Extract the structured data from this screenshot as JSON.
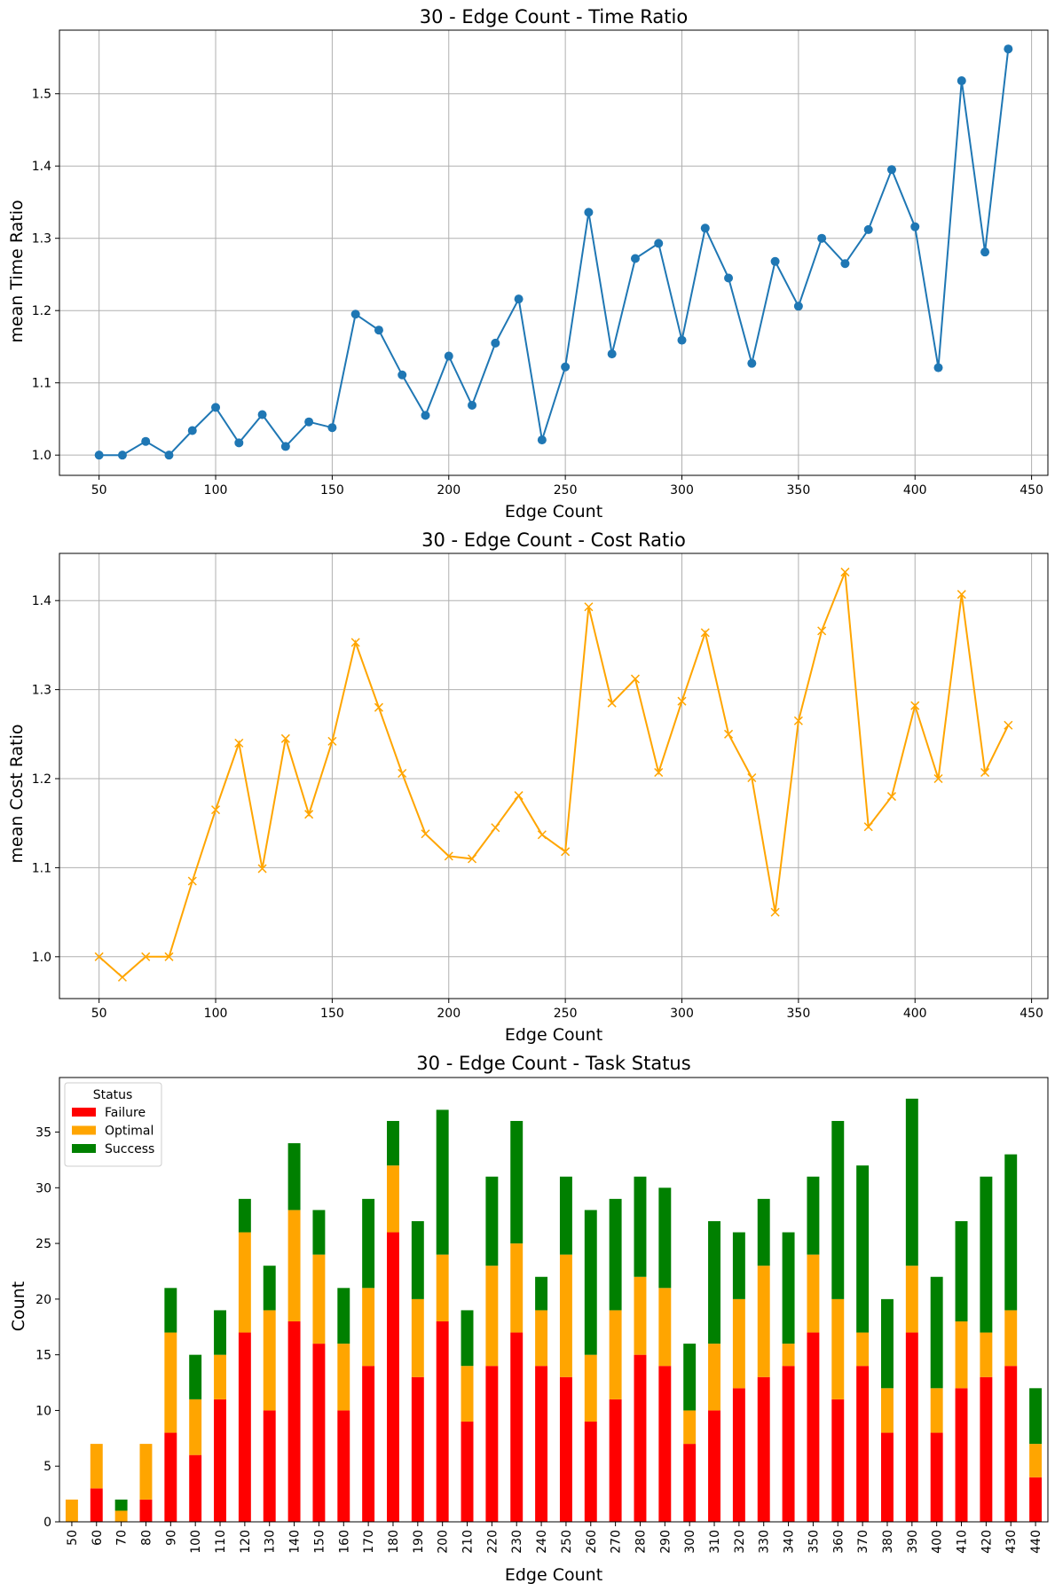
{
  "chart_data": [
    {
      "type": "line",
      "title": "30 - Edge Count - Time Ratio",
      "xlabel": "Edge Count",
      "ylabel": "mean Time Ratio",
      "xlim": [
        33,
        457
      ],
      "ylim": [
        0.972,
        1.588
      ],
      "xticks": [
        50,
        100,
        150,
        200,
        250,
        300,
        350,
        400,
        450
      ],
      "yticks": [
        1.0,
        1.1,
        1.2,
        1.3,
        1.4,
        1.5
      ],
      "grid": true,
      "color": "#1f77b4",
      "marker": "circle",
      "x": [
        50,
        60,
        70,
        80,
        90,
        100,
        110,
        120,
        130,
        140,
        150,
        160,
        170,
        180,
        190,
        200,
        210,
        220,
        230,
        240,
        250,
        260,
        270,
        280,
        290,
        300,
        310,
        320,
        330,
        340,
        350,
        360,
        370,
        380,
        390,
        400,
        410,
        420,
        430,
        440
      ],
      "y": [
        1.0,
        1.0,
        1.019,
        1.0,
        1.034,
        1.066,
        1.017,
        1.056,
        1.012,
        1.046,
        1.038,
        1.195,
        1.173,
        1.111,
        1.055,
        1.137,
        1.069,
        1.155,
        1.216,
        1.021,
        1.122,
        1.336,
        1.14,
        1.272,
        1.293,
        1.159,
        1.314,
        1.245,
        1.127,
        1.268,
        1.206,
        1.3,
        1.265,
        1.312,
        1.395,
        1.316,
        1.121,
        1.518,
        1.281,
        1.562
      ]
    },
    {
      "type": "line",
      "title": "30 - Edge Count - Cost Ratio",
      "xlabel": "Edge Count",
      "ylabel": "mean Cost Ratio",
      "xlim": [
        33,
        457
      ],
      "ylim": [
        0.953,
        1.453
      ],
      "xticks": [
        50,
        100,
        150,
        200,
        250,
        300,
        350,
        400,
        450
      ],
      "yticks": [
        1.0,
        1.1,
        1.2,
        1.3,
        1.4
      ],
      "grid": true,
      "color": "#ffa500",
      "marker": "x",
      "x": [
        50,
        60,
        70,
        80,
        90,
        100,
        110,
        120,
        130,
        140,
        150,
        160,
        170,
        180,
        190,
        200,
        210,
        220,
        230,
        240,
        250,
        260,
        270,
        280,
        290,
        300,
        310,
        320,
        330,
        340,
        350,
        360,
        370,
        380,
        390,
        400,
        410,
        420,
        430,
        440
      ],
      "y": [
        1.0,
        0.977,
        1.0,
        1.0,
        1.085,
        1.165,
        1.24,
        1.099,
        1.245,
        1.16,
        1.242,
        1.353,
        1.28,
        1.206,
        1.138,
        1.113,
        1.11,
        1.145,
        1.181,
        1.137,
        1.118,
        1.393,
        1.285,
        1.312,
        1.207,
        1.287,
        1.364,
        1.25,
        1.201,
        1.05,
        1.265,
        1.366,
        1.432,
        1.146,
        1.18,
        1.282,
        1.2,
        1.407,
        1.207,
        1.26
      ]
    },
    {
      "type": "bar",
      "stacked": true,
      "title": "30 - Edge Count - Task Status",
      "xlabel": "Edge Count",
      "ylabel": "Count",
      "ylim": [
        0,
        39.9
      ],
      "yticks": [
        0,
        5,
        10,
        15,
        20,
        25,
        30,
        35
      ],
      "grid": false,
      "legend": {
        "title": "Status",
        "placement": "upper-left"
      },
      "categories": [
        "50",
        "60",
        "70",
        "80",
        "90",
        "100",
        "110",
        "120",
        "130",
        "140",
        "150",
        "160",
        "170",
        "180",
        "190",
        "200",
        "210",
        "220",
        "230",
        "240",
        "250",
        "260",
        "270",
        "280",
        "290",
        "300",
        "310",
        "320",
        "330",
        "340",
        "350",
        "360",
        "370",
        "380",
        "390",
        "400",
        "410",
        "420",
        "430",
        "440"
      ],
      "series": [
        {
          "name": "Failure",
          "color": "#ff0000",
          "values": [
            0,
            3,
            0,
            2,
            8,
            6,
            11,
            17,
            10,
            18,
            16,
            10,
            14,
            26,
            13,
            18,
            9,
            14,
            17,
            14,
            13,
            9,
            11,
            15,
            14,
            7,
            10,
            12,
            13,
            14,
            17,
            11,
            14,
            8,
            17,
            8,
            12,
            13,
            14,
            4
          ]
        },
        {
          "name": "Optimal",
          "color": "#ffa500",
          "values": [
            2,
            4,
            1,
            5,
            9,
            5,
            4,
            9,
            9,
            10,
            8,
            6,
            7,
            6,
            7,
            6,
            5,
            9,
            8,
            5,
            11,
            6,
            8,
            7,
            7,
            3,
            6,
            8,
            10,
            2,
            7,
            9,
            3,
            4,
            6,
            4,
            6,
            4,
            5,
            3
          ]
        },
        {
          "name": "Success",
          "color": "#008000",
          "values": [
            0,
            0,
            1,
            0,
            4,
            4,
            4,
            3,
            4,
            6,
            4,
            5,
            8,
            4,
            7,
            13,
            5,
            8,
            11,
            3,
            7,
            13,
            10,
            9,
            9,
            6,
            11,
            6,
            6,
            10,
            7,
            16,
            15,
            8,
            15,
            10,
            9,
            14,
            14,
            5
          ]
        }
      ]
    }
  ]
}
